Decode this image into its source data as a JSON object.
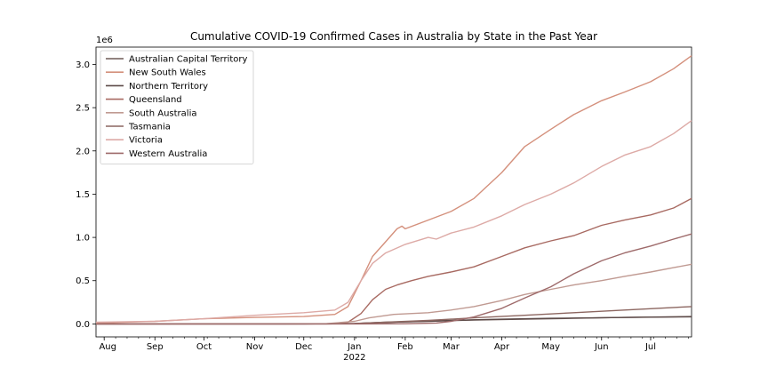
{
  "chart_data": {
    "type": "line",
    "title": "Cumulative COVID-19 Confirmed Cases in Australia by State in the Past Year",
    "xlabel": "",
    "ylabel": "",
    "y_scale_label": "1e6",
    "ylim": [
      -0.15,
      3.2
    ],
    "yticks": [
      0.0,
      0.5,
      1.0,
      1.5,
      2.0,
      2.5,
      3.0
    ],
    "ytick_labels": [
      "0.0",
      "0.5",
      "1.0",
      "1.5",
      "2.0",
      "2.5",
      "3.0"
    ],
    "xlim": [
      "2021-07-27",
      "2022-07-26"
    ],
    "x_ticks": [
      {
        "date": "2021-08-01",
        "label": "Aug"
      },
      {
        "date": "2021-09-01",
        "label": "Sep"
      },
      {
        "date": "2021-10-01",
        "label": "Oct"
      },
      {
        "date": "2021-11-01",
        "label": "Nov"
      },
      {
        "date": "2021-12-01",
        "label": "Dec"
      },
      {
        "date": "2022-01-01",
        "label": "Jan"
      },
      {
        "date": "2022-02-01",
        "label": "Feb"
      },
      {
        "date": "2022-03-01",
        "label": "Mar"
      },
      {
        "date": "2022-04-01",
        "label": "Apr"
      },
      {
        "date": "2022-05-01",
        "label": "May"
      },
      {
        "date": "2022-06-01",
        "label": "Jun"
      },
      {
        "date": "2022-07-01",
        "label": "Jul"
      }
    ],
    "x_year_label": "2022",
    "grid": false,
    "legend_position": "upper-left",
    "series": [
      {
        "name": "Australian Capital Territory",
        "color": "#6e5a57",
        "x": [
          "2021-07-27",
          "2021-09-15",
          "2021-11-01",
          "2021-12-15",
          "2022-01-01",
          "2022-01-20",
          "2022-02-15",
          "2022-03-15",
          "2022-04-15",
          "2022-05-15",
          "2022-06-15",
          "2022-07-26"
        ],
        "y": [
          0.0001,
          0.0008,
          0.0015,
          0.002,
          0.005,
          0.02,
          0.03,
          0.045,
          0.055,
          0.065,
          0.075,
          0.085
        ]
      },
      {
        "name": "New South Wales",
        "color": "#d4907c",
        "x": [
          "2021-07-27",
          "2021-09-01",
          "2021-10-01",
          "2021-11-01",
          "2021-12-01",
          "2021-12-20",
          "2021-12-28",
          "2022-01-05",
          "2022-01-12",
          "2022-01-20",
          "2022-01-27",
          "2022-01-30",
          "2022-02-01",
          "2022-02-15",
          "2022-03-01",
          "2022-03-15",
          "2022-04-01",
          "2022-04-15",
          "2022-05-01",
          "2022-05-15",
          "2022-06-01",
          "2022-06-15",
          "2022-07-01",
          "2022-07-15",
          "2022-07-26"
        ],
        "y": [
          0.01,
          0.03,
          0.06,
          0.075,
          0.085,
          0.11,
          0.2,
          0.5,
          0.78,
          0.95,
          1.1,
          1.13,
          1.1,
          1.2,
          1.3,
          1.45,
          1.75,
          2.05,
          2.25,
          2.42,
          2.58,
          2.68,
          2.8,
          2.95,
          3.1
        ]
      },
      {
        "name": "Northern Territory",
        "color": "#5c4a48",
        "x": [
          "2021-07-27",
          "2021-12-01",
          "2022-01-01",
          "2022-02-01",
          "2022-03-01",
          "2022-04-01",
          "2022-05-01",
          "2022-06-01",
          "2022-07-01",
          "2022-07-26"
        ],
        "y": [
          0.0001,
          0.0002,
          0.005,
          0.025,
          0.04,
          0.055,
          0.065,
          0.072,
          0.078,
          0.082
        ]
      },
      {
        "name": "Queensland",
        "color": "#a86a62",
        "x": [
          "2021-07-27",
          "2021-12-20",
          "2021-12-28",
          "2022-01-05",
          "2022-01-12",
          "2022-01-20",
          "2022-01-27",
          "2022-02-05",
          "2022-02-15",
          "2022-03-01",
          "2022-03-15",
          "2022-04-01",
          "2022-04-15",
          "2022-05-01",
          "2022-05-15",
          "2022-06-01",
          "2022-06-15",
          "2022-07-01",
          "2022-07-15",
          "2022-07-26"
        ],
        "y": [
          0.0005,
          0.002,
          0.02,
          0.12,
          0.28,
          0.4,
          0.45,
          0.5,
          0.55,
          0.6,
          0.66,
          0.78,
          0.88,
          0.96,
          1.02,
          1.14,
          1.2,
          1.26,
          1.34,
          1.45
        ]
      },
      {
        "name": "South Australia",
        "color": "#c09a92",
        "x": [
          "2021-07-27",
          "2021-11-20",
          "2021-12-15",
          "2022-01-01",
          "2022-01-10",
          "2022-01-25",
          "2022-02-15",
          "2022-03-01",
          "2022-03-15",
          "2022-04-01",
          "2022-04-15",
          "2022-05-01",
          "2022-05-15",
          "2022-06-01",
          "2022-06-15",
          "2022-07-01",
          "2022-07-15",
          "2022-07-26"
        ],
        "y": [
          0.0001,
          0.0005,
          0.003,
          0.03,
          0.07,
          0.11,
          0.13,
          0.16,
          0.2,
          0.27,
          0.34,
          0.4,
          0.45,
          0.5,
          0.55,
          0.6,
          0.65,
          0.69
        ]
      },
      {
        "name": "Tasmania",
        "color": "#8c6660",
        "x": [
          "2021-07-27",
          "2021-12-15",
          "2022-01-01",
          "2022-01-20",
          "2022-02-15",
          "2022-03-15",
          "2022-04-15",
          "2022-05-15",
          "2022-06-15",
          "2022-07-26"
        ],
        "y": [
          0.0,
          0.0002,
          0.005,
          0.02,
          0.04,
          0.07,
          0.1,
          0.13,
          0.16,
          0.2
        ]
      },
      {
        "name": "Victoria",
        "color": "#ddaaa6",
        "x": [
          "2021-07-27",
          "2021-09-01",
          "2021-10-01",
          "2021-11-01",
          "2021-12-01",
          "2021-12-20",
          "2021-12-28",
          "2022-01-05",
          "2022-01-12",
          "2022-01-20",
          "2022-02-01",
          "2022-02-15",
          "2022-02-20",
          "2022-03-01",
          "2022-03-15",
          "2022-04-01",
          "2022-04-15",
          "2022-05-01",
          "2022-05-15",
          "2022-06-01",
          "2022-06-15",
          "2022-07-01",
          "2022-07-15",
          "2022-07-26"
        ],
        "y": [
          0.02,
          0.03,
          0.06,
          0.1,
          0.13,
          0.16,
          0.25,
          0.5,
          0.7,
          0.82,
          0.92,
          1.0,
          0.98,
          1.05,
          1.12,
          1.25,
          1.38,
          1.5,
          1.63,
          1.82,
          1.95,
          2.05,
          2.2,
          2.35
        ]
      },
      {
        "name": "Western Australia",
        "color": "#9e6a6a",
        "x": [
          "2021-07-27",
          "2022-01-01",
          "2022-02-01",
          "2022-02-20",
          "2022-03-01",
          "2022-03-15",
          "2022-04-01",
          "2022-04-15",
          "2022-05-01",
          "2022-05-15",
          "2022-06-01",
          "2022-06-15",
          "2022-07-01",
          "2022-07-15",
          "2022-07-26"
        ],
        "y": [
          0.0,
          0.0002,
          0.002,
          0.01,
          0.03,
          0.08,
          0.18,
          0.3,
          0.43,
          0.58,
          0.73,
          0.82,
          0.9,
          0.98,
          1.04
        ]
      }
    ]
  }
}
